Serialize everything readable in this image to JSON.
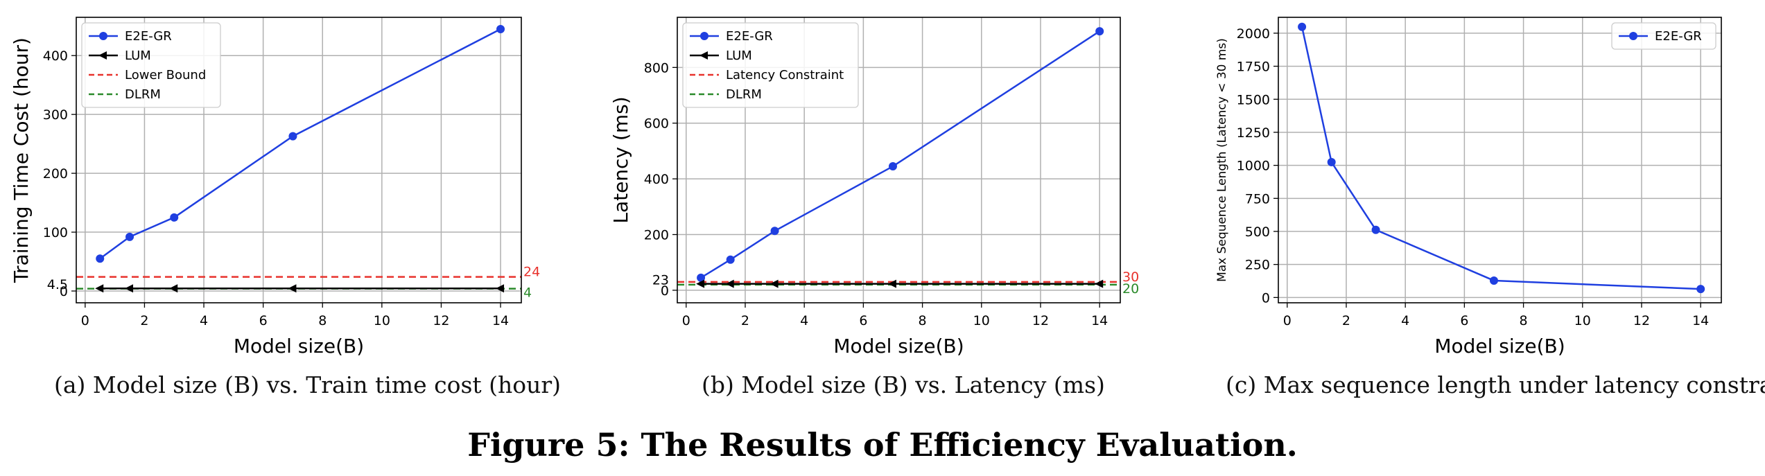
{
  "figure": {
    "title": "Figure 5: The Results of Efficiency Evaluation."
  },
  "chart_data": [
    {
      "type": "line",
      "caption": "(a)  Model size (B) vs. Train time cost (hour)",
      "xlabel": "Model size(B)",
      "ylabel": "Training Time Cost (hour)",
      "xlim": [
        -0.3,
        14.7
      ],
      "ylim": [
        -20,
        465
      ],
      "xticks": [
        0,
        2,
        4,
        6,
        8,
        10,
        12,
        14
      ],
      "yticks": [
        0,
        100,
        200,
        300,
        400
      ],
      "extra_left_labels": [
        {
          "value": 4.5,
          "text": "4.5"
        }
      ],
      "series": [
        {
          "name": "E2E-GR",
          "color": "#1f3fe0",
          "marker": "circle",
          "x": [
            0.5,
            1.5,
            3,
            7,
            14
          ],
          "y": [
            55,
            92,
            125,
            263,
            445
          ]
        },
        {
          "name": "LUM",
          "color": "#000000",
          "marker": "triangle-left",
          "x": [
            0.5,
            1.5,
            3,
            7,
            14
          ],
          "y": [
            4.5,
            4.5,
            4.5,
            4.5,
            4.5
          ]
        }
      ],
      "hlines": [
        {
          "name": "Lower Bound",
          "color": "#e8322c",
          "value": 24,
          "label": "24"
        },
        {
          "name": "DLRM",
          "color": "#2a8a2a",
          "value": 4,
          "label": "4"
        }
      ]
    },
    {
      "type": "line",
      "caption": "(b)  Model size (B) vs. Latency (ms)",
      "xlabel": "Model size(B)",
      "ylabel": "Latency (ms)",
      "xlim": [
        -0.3,
        14.7
      ],
      "ylim": [
        -45,
        980
      ],
      "xticks": [
        0,
        2,
        4,
        6,
        8,
        10,
        12,
        14
      ],
      "yticks": [
        0,
        200,
        400,
        600,
        800
      ],
      "extra_left_labels": [
        {
          "value": 23,
          "text": "23"
        }
      ],
      "series": [
        {
          "name": "E2E-GR",
          "color": "#1f3fe0",
          "marker": "circle",
          "x": [
            0.5,
            1.5,
            3,
            7,
            14
          ],
          "y": [
            45,
            110,
            213,
            445,
            930
          ]
        },
        {
          "name": "LUM",
          "color": "#000000",
          "marker": "triangle-left",
          "x": [
            0.5,
            1.5,
            3,
            7,
            14
          ],
          "y": [
            23,
            23,
            23,
            23,
            23
          ]
        }
      ],
      "hlines": [
        {
          "name": "Latency Constraint",
          "color": "#e8322c",
          "value": 30,
          "label": "30"
        },
        {
          "name": "DLRM",
          "color": "#2a8a2a",
          "value": 20,
          "label": "20"
        }
      ]
    },
    {
      "type": "line",
      "caption": "(c)  Max sequence length under latency constrain",
      "xlabel": "Model size(B)",
      "ylabel": "Max Sequence Length (Latency < 30 ms)",
      "xlim": [
        -0.3,
        14.7
      ],
      "ylim": [
        -40,
        2120
      ],
      "xticks": [
        0,
        2,
        4,
        6,
        8,
        10,
        12,
        14
      ],
      "yticks": [
        0,
        250,
        500,
        750,
        1000,
        1250,
        1500,
        1750,
        2000
      ],
      "extra_left_labels": [],
      "series": [
        {
          "name": "E2E-GR",
          "color": "#1f3fe0",
          "marker": "circle",
          "x": [
            0.5,
            1.5,
            3,
            7,
            14
          ],
          "y": [
            2048,
            1024,
            512,
            128,
            64
          ]
        }
      ],
      "hlines": []
    }
  ]
}
